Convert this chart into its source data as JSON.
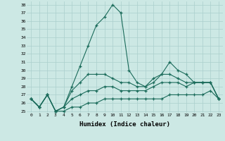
{
  "xlabel": "Humidex (Indice chaleur)",
  "x_values": [
    0,
    1,
    2,
    3,
    4,
    5,
    6,
    7,
    8,
    9,
    10,
    11,
    12,
    13,
    14,
    15,
    16,
    17,
    18,
    19,
    20,
    21,
    22,
    23
  ],
  "line1": [
    26.5,
    25.5,
    27.0,
    25.0,
    25.5,
    28.0,
    30.5,
    33.0,
    35.5,
    36.5,
    38.0,
    37.0,
    30.0,
    28.5,
    28.0,
    29.0,
    29.5,
    31.0,
    30.0,
    29.5,
    28.5,
    28.5,
    28.5,
    26.5
  ],
  "line2": [
    26.5,
    25.5,
    27.0,
    25.0,
    25.5,
    27.5,
    28.5,
    29.5,
    29.5,
    29.5,
    29.0,
    28.5,
    28.5,
    28.0,
    28.0,
    28.5,
    29.5,
    29.5,
    29.0,
    28.5,
    28.5,
    28.5,
    28.5,
    26.5
  ],
  "line3": [
    26.5,
    25.5,
    27.0,
    25.0,
    25.5,
    26.5,
    27.0,
    27.5,
    27.5,
    28.0,
    28.0,
    27.5,
    27.5,
    27.5,
    27.5,
    28.0,
    28.5,
    28.5,
    28.5,
    28.0,
    28.5,
    28.5,
    28.5,
    26.5
  ],
  "line4": [
    26.5,
    25.5,
    27.0,
    25.0,
    25.0,
    25.5,
    25.5,
    26.0,
    26.0,
    26.5,
    26.5,
    26.5,
    26.5,
    26.5,
    26.5,
    26.5,
    26.5,
    27.0,
    27.0,
    27.0,
    27.0,
    27.0,
    27.5,
    26.5
  ],
  "line_color": "#1a6b5a",
  "bg_color": "#cce8e4",
  "grid_color": "#aacfcc",
  "ylim": [
    25,
    38
  ],
  "yticks": [
    25,
    26,
    27,
    28,
    29,
    30,
    31,
    32,
    33,
    34,
    35,
    36,
    37,
    38
  ]
}
